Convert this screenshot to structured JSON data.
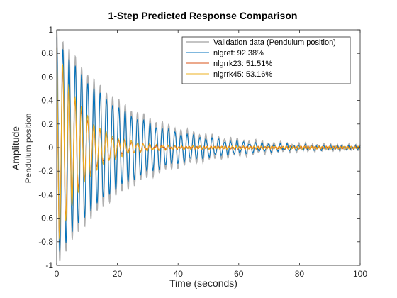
{
  "chart_data": {
    "type": "line",
    "title": "1-Step Predicted Response Comparison",
    "xlabel": "Time (seconds)",
    "ylabel": "Amplitude",
    "ylabel_sub": "Pendulum position",
    "xlim": [
      0,
      100
    ],
    "ylim": [
      -1,
      1
    ],
    "xticks": [
      0,
      20,
      40,
      60,
      80,
      100
    ],
    "yticks": [
      1,
      0.8,
      0.6,
      0.4,
      0.2,
      0,
      -0.2,
      -0.4,
      -0.6,
      -0.8,
      -1
    ],
    "ytick_labels": [
      "1",
      "0.8",
      "0.6",
      "0.4",
      "0.2",
      "0",
      "-0.2",
      "-0.4",
      "-0.6",
      "-0.8",
      "-1"
    ],
    "xtick_labels": [
      "0",
      "20",
      "40",
      "60",
      "80",
      "100"
    ],
    "grid": false,
    "legend_position": "top-right",
    "series": [
      {
        "name": "Validation data (Pendulum position)",
        "color": "#b0b0b0",
        "model": {
          "amplitude": 1.0,
          "decay_tau": 22,
          "period": 2.05,
          "phase": 0,
          "start": 0,
          "end": 100,
          "floor_noise": 0.015
        }
      },
      {
        "name": "nlgref: 92.38%",
        "color": "#0072BD",
        "model": {
          "amplitude": 0.93,
          "decay_tau": 20,
          "period": 2.05,
          "phase": 0.05,
          "start": 0,
          "end": 100,
          "floor_noise": 0.012
        }
      },
      {
        "name": "nlgrrk23: 51.51%",
        "color": "#D95319",
        "model": {
          "amplitude": 0.85,
          "decay_tau": 8,
          "period": 2.05,
          "phase": 0.3,
          "start": 0,
          "end": 100,
          "floor_noise": 0.01
        }
      },
      {
        "name": "nlgrrk45: 53.16%",
        "color": "#EDB120",
        "model": {
          "amplitude": 0.88,
          "decay_tau": 8.5,
          "period": 2.05,
          "phase": 0.25,
          "start": 0,
          "end": 100,
          "floor_noise": 0.01
        }
      }
    ]
  }
}
